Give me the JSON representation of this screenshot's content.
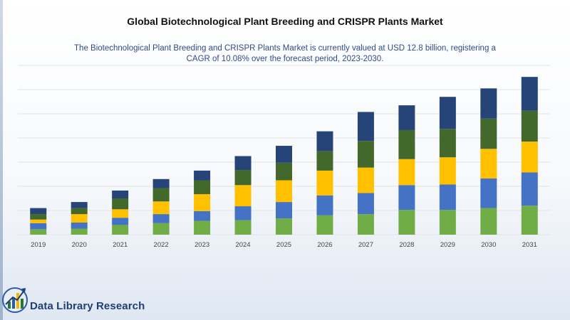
{
  "header": {
    "title": "Global Biotechnological Plant Breeding and CRISPR Plants Market",
    "subtitle": "The Biotechnological Plant Breeding and CRISPR Plants Market is currently valued at USD 12.8 billion, registering a CAGR of 10.08% over the forecast period, 2023-2030."
  },
  "brand": {
    "name": "Data Library Research",
    "icon": "bar-chart-up-arrow-logo"
  },
  "colors": {
    "segment_1": "#70ad47",
    "segment_2": "#4472c4",
    "segment_3": "#ffc000",
    "segment_4": "#43682b",
    "segment_5": "#264478",
    "gridline": "#e3e3e3",
    "brand_text": "#1f3f73"
  },
  "chart_data": {
    "type": "bar",
    "stacked": true,
    "categories": [
      "2019",
      "2020",
      "2021",
      "2022",
      "2023",
      "2024",
      "2025",
      "2026",
      "2027",
      "2028",
      "2029",
      "2030",
      "2031"
    ],
    "series": [
      {
        "values": [
          0.9,
          1.0,
          1.6,
          1.9,
          2.3,
          2.4,
          2.7,
          3.2,
          3.4,
          4.1,
          4.1,
          4.4,
          4.8
        ]
      },
      {
        "values": [
          1.0,
          1.0,
          1.2,
          1.5,
          1.6,
          2.3,
          2.7,
          3.3,
          3.5,
          4.1,
          4.2,
          4.9,
          5.5
        ]
      },
      {
        "values": [
          0.6,
          1.4,
          1.4,
          2.1,
          2.8,
          3.5,
          3.6,
          4.1,
          4.2,
          4.3,
          4.5,
          4.9,
          5.1
        ]
      },
      {
        "values": [
          0.9,
          1.0,
          1.8,
          2.2,
          2.3,
          2.5,
          2.9,
          3.2,
          4.4,
          4.8,
          4.7,
          5.0,
          5.1
        ]
      },
      {
        "values": [
          1.0,
          1.0,
          1.3,
          1.5,
          1.6,
          2.3,
          2.8,
          3.3,
          4.8,
          4.1,
          5.3,
          5.0,
          5.6
        ]
      }
    ],
    "ylim": [
      0,
      28
    ],
    "grid": true,
    "legend": "none"
  }
}
